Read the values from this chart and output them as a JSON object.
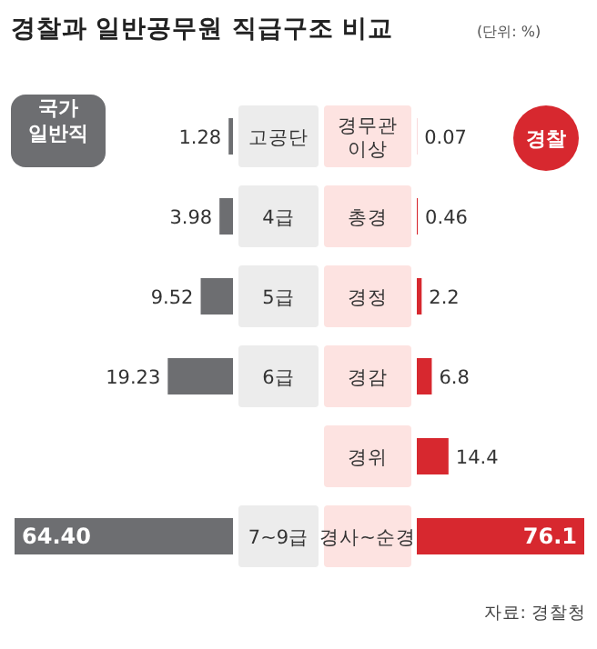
{
  "chart_data": [
    {
      "type": "bar",
      "orientation": "horizontal",
      "title": "경찰과 일반공무원 직급구조 비교",
      "categories": [
        "고공단",
        "4급",
        "5급",
        "6급",
        null,
        "7~9급"
      ],
      "legend": "top left",
      "series": [
        {
          "name": "국가 일반직",
          "color": "#6d6e71",
          "values": [
            1.28,
            3.98,
            9.52,
            19.23,
            null,
            64.4
          ],
          "value_labels": [
            "1.28",
            "3.98",
            "9.52",
            "19.23",
            null,
            "64.40"
          ]
        }
      ]
    },
    {
      "type": "bar",
      "orientation": "horizontal",
      "categories": [
        "경무관 이상",
        "총경",
        "경정",
        "경감",
        "경위",
        "경사~순경"
      ],
      "legend": "top right",
      "subtitle": "(단위: %)",
      "annotations": [
        "자료: 경찰청"
      ],
      "series": [
        {
          "name": "경찰",
          "color": "#d7282f",
          "values": [
            0.07,
            0.46,
            2.2,
            6.8,
            14.4,
            76.1
          ],
          "value_labels": [
            "0.07",
            "0.46",
            "2.2",
            "6.8",
            "14.4",
            "76.1"
          ]
        }
      ]
    }
  ]
}
